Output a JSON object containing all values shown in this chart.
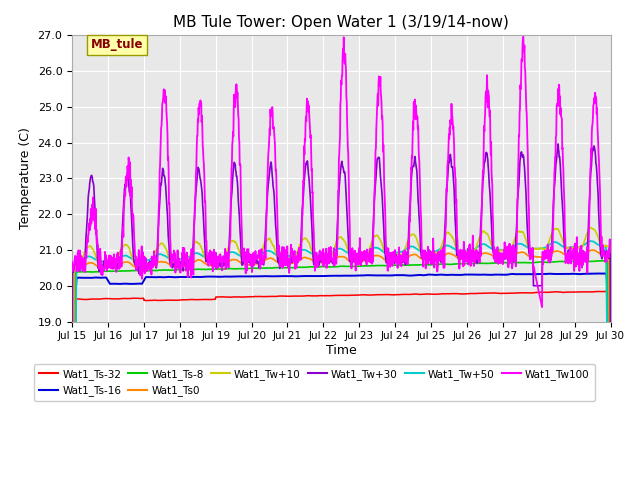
{
  "title": "MB Tule Tower: Open Water 1 (3/19/14-now)",
  "xlabel": "Time",
  "ylabel": "Temperature (C)",
  "ylim": [
    19.0,
    27.0
  ],
  "xlim": [
    0,
    15
  ],
  "xtick_labels": [
    "Jul 15",
    "Jul 16",
    "Jul 17",
    "Jul 18",
    "Jul 19",
    "Jul 20",
    "Jul 21",
    "Jul 22",
    "Jul 23",
    "Jul 24",
    "Jul 25",
    "Jul 26",
    "Jul 27",
    "Jul 28",
    "Jul 29",
    "Jul 30"
  ],
  "legend_labels": [
    "Wat1_Ts-32",
    "Wat1_Ts-16",
    "Wat1_Ts-8",
    "Wat1_Ts0",
    "Wat1_Tw+10",
    "Wat1_Tw+30",
    "Wat1_Tw+50",
    "Wat1_Tw100"
  ],
  "legend_colors": [
    "#ff0000",
    "#0000dd",
    "#00cc00",
    "#ff8800",
    "#cccc00",
    "#8800cc",
    "#00cccc",
    "#ff00ff"
  ],
  "annotation_text": "MB_tule",
  "colors": {
    "ts32": "#ff0000",
    "ts16": "#0000dd",
    "ts8": "#00cc00",
    "ts0": "#ff8800",
    "tw10": "#cccc00",
    "tw30": "#8800cc",
    "tw50": "#00cccc",
    "tw100": "#ff00ff"
  }
}
